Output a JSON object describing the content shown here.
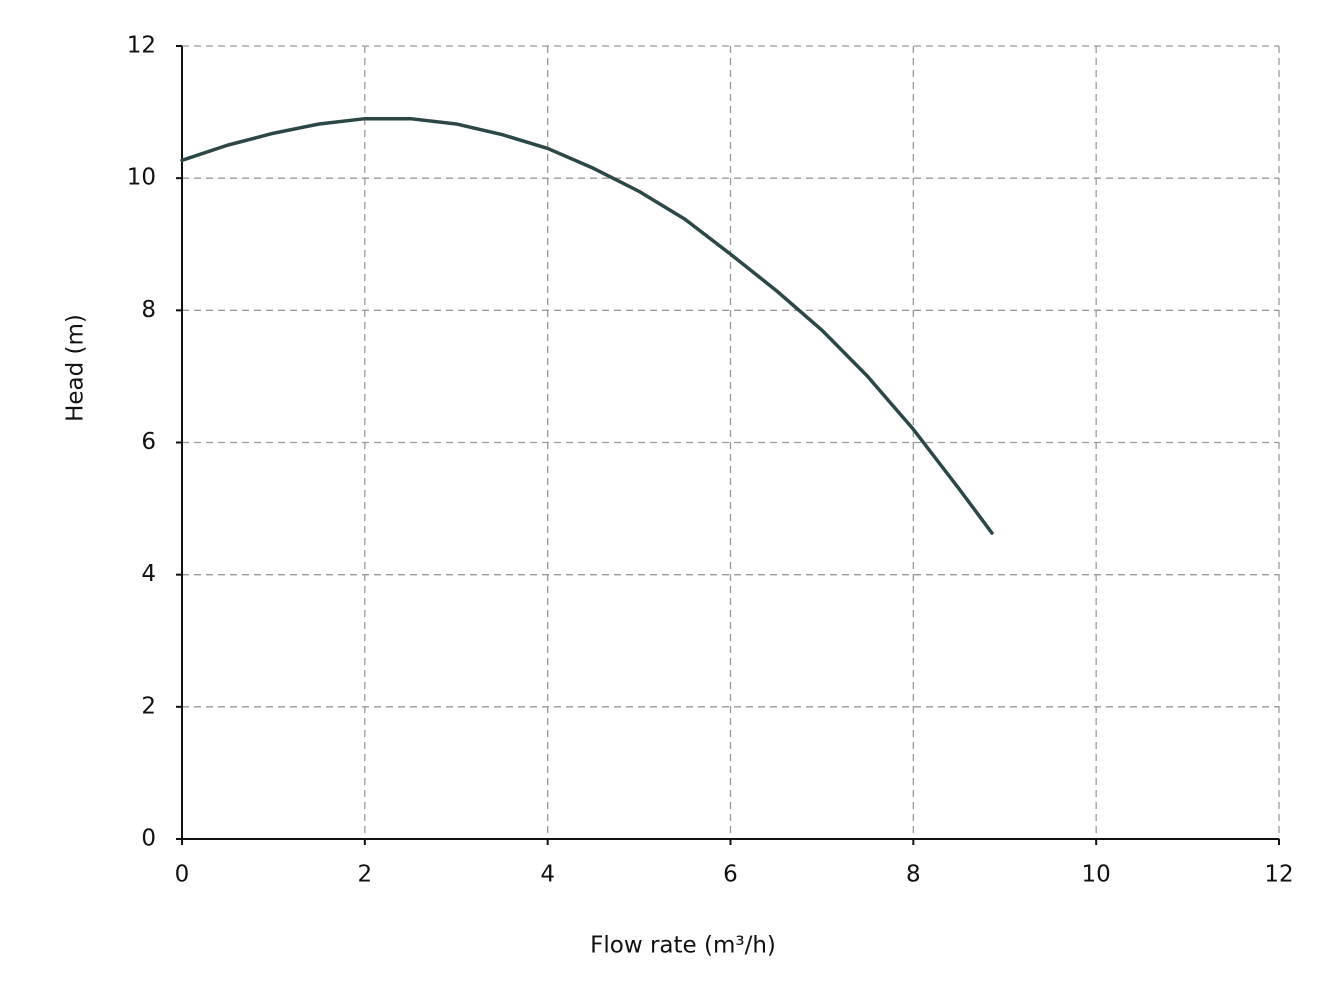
{
  "chart_data": {
    "type": "line",
    "xlabel": "Flow rate (m³/h)",
    "ylabel": "Head (m)",
    "x": [
      0,
      0.5,
      1,
      1.5,
      2,
      2.5,
      3,
      3.5,
      4,
      4.5,
      5,
      5.5,
      6,
      6.5,
      7,
      7.5,
      8,
      8.5,
      8.86
    ],
    "values": [
      10.27,
      10.5,
      10.68,
      10.82,
      10.9,
      10.9,
      10.82,
      10.66,
      10.45,
      10.15,
      9.8,
      9.38,
      8.85,
      8.3,
      7.7,
      7.0,
      6.2,
      5.3,
      4.63
    ],
    "color": "#2c4747",
    "xlim": [
      0,
      12
    ],
    "ylim": [
      0,
      12
    ],
    "xticks": [
      0,
      2,
      4,
      6,
      8,
      10,
      12
    ],
    "yticks": [
      0,
      2,
      4,
      6,
      8,
      10,
      12
    ],
    "grid": true
  }
}
